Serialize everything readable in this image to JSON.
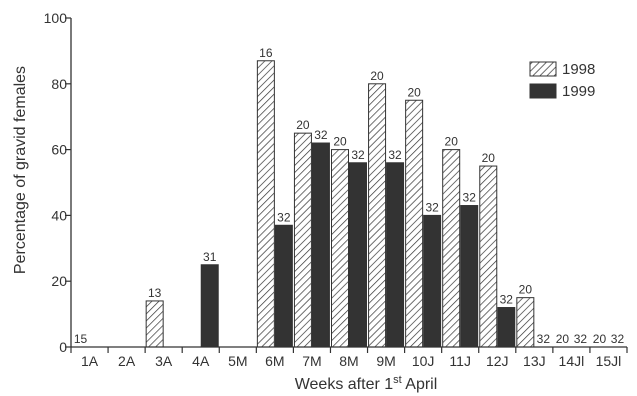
{
  "chart_data": {
    "type": "bar",
    "ylabel": "Percentage of gravid females",
    "xlabel": "Weeks after 1",
    "xlabel_superscript": "st",
    "xlabel_suffix": " April",
    "ylim": [
      0,
      100
    ],
    "yticks": [
      0,
      20,
      40,
      60,
      80,
      100
    ],
    "grid": false,
    "legend_position": "top-right",
    "categories": [
      "1A",
      "2A",
      "3A",
      "4A",
      "5M",
      "6M",
      "7M",
      "8M",
      "9M",
      "10J",
      "11J",
      "12J",
      "13J",
      "14Jl",
      "15Jl"
    ],
    "series": [
      {
        "name": "1998",
        "pattern": "hatched",
        "fill_color": "#ffffff",
        "stroke_color": "#333333",
        "values": [
          0,
          0,
          14,
          0,
          0,
          87,
          65,
          60,
          80,
          75,
          60,
          55,
          15,
          0,
          0
        ],
        "n_labels": [
          "15",
          "",
          "13",
          "",
          "",
          "16",
          "20",
          "20",
          "20",
          "20",
          "20",
          "20",
          "20",
          "20",
          "20"
        ]
      },
      {
        "name": "1999",
        "pattern": "solid",
        "fill_color": "#333333",
        "stroke_color": "#333333",
        "values": [
          0,
          0,
          0,
          25,
          0,
          37,
          62,
          56,
          56,
          40,
          43,
          12,
          0,
          0,
          0
        ],
        "n_labels": [
          "",
          "",
          "",
          "31",
          "",
          "32",
          "32",
          "32",
          "32",
          "32",
          "32",
          "32",
          "32",
          "32",
          "32"
        ]
      }
    ]
  }
}
